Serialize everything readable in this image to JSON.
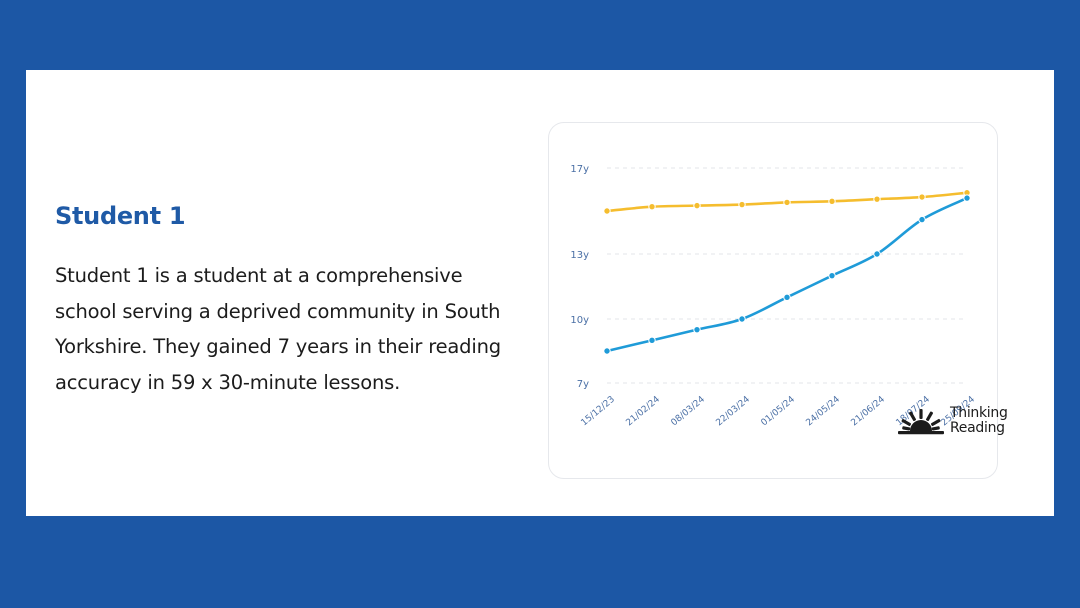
{
  "text": {
    "heading": "Student 1",
    "body": "Student 1 is a student at a comprehensive school serving a deprived community in South Yorkshire. They gained 7 years in their reading accuracy in 59 x 30-minute lessons."
  },
  "logo": {
    "line1": "Thinking",
    "line2": "Reading",
    "icon": "sunrise-icon"
  },
  "colors": {
    "background": "#1c57a5",
    "card": "#ffffff",
    "heading": "#1f5aa6",
    "series_yellow": "#f5bd2e",
    "series_blue": "#1f9bd8",
    "axis_text": "#4a6fa5",
    "grid": "#e3e6ea"
  },
  "chart_data": {
    "type": "line",
    "x": [
      "15/12/23",
      "21/02/24",
      "08/03/24",
      "22/03/24",
      "01/05/24",
      "24/05/24",
      "21/06/24",
      "18/07/24",
      "25/09/24"
    ],
    "y_ticks": [
      {
        "value": 7,
        "label": "7y"
      },
      {
        "value": 10,
        "label": "10y"
      },
      {
        "value": 13,
        "label": "13y"
      },
      {
        "value": 17,
        "label": "17y"
      }
    ],
    "ylim": [
      7,
      17
    ],
    "grid": true,
    "series": [
      {
        "color": "#f5bd2e",
        "values": [
          15.0,
          15.2,
          15.25,
          15.3,
          15.4,
          15.45,
          15.55,
          15.65,
          15.85
        ]
      },
      {
        "color": "#1f9bd8",
        "values": [
          8.5,
          9.0,
          9.5,
          10.0,
          11.0,
          12.0,
          13.0,
          14.6,
          15.6
        ]
      }
    ]
  }
}
